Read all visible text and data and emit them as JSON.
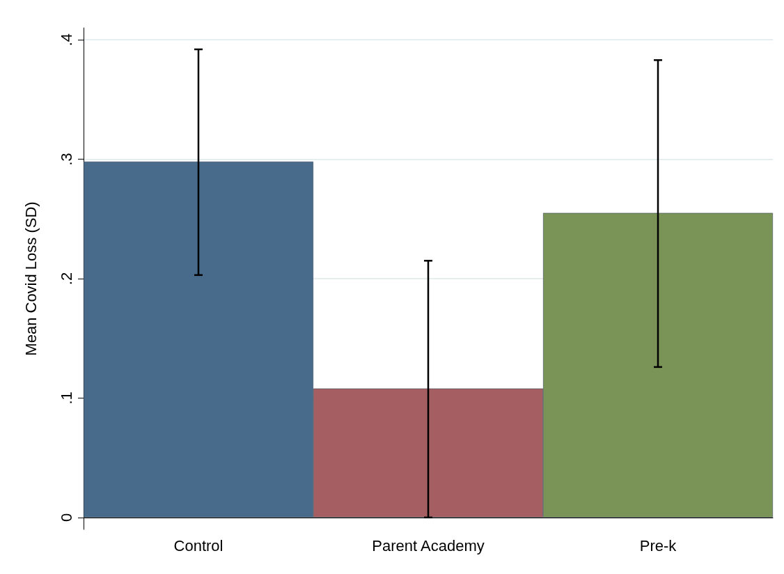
{
  "chart_data": {
    "type": "bar",
    "ylabel": "Mean Covid Loss (SD)",
    "categories": [
      "Control",
      "Parent Academy",
      "Pre-k"
    ],
    "values": [
      0.298,
      0.108,
      0.255
    ],
    "colors": [
      "#486b8c",
      "#a55e61",
      "#7a9457"
    ],
    "errors": [
      [
        0.203,
        0.392
      ],
      [
        0.0,
        0.215
      ],
      [
        0.126,
        0.383
      ]
    ],
    "ylim": [
      -0.01,
      0.41
    ],
    "yticks": [
      0,
      {
        "value": 0.1,
        "label": ".1"
      },
      {
        "value": 0.2,
        "label": ".2"
      },
      {
        "value": 0.3,
        "label": ".3"
      },
      {
        "value": 0.4,
        "label": ".4"
      }
    ],
    "grid": "y"
  }
}
